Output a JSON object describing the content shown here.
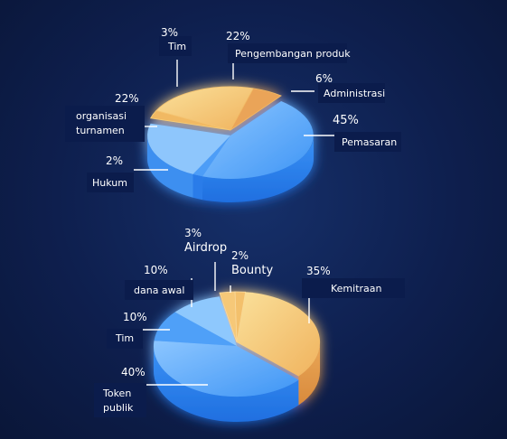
{
  "chart_data": [
    {
      "type": "pie",
      "slices": [
        {
          "label": "Tim",
          "pct_label": "3%",
          "value": 3
        },
        {
          "label": "Pengembangan produk",
          "pct_label": "22%",
          "value": 22
        },
        {
          "label": "Administrasi",
          "pct_label": "6%",
          "value": 6
        },
        {
          "label": "Pemasaran",
          "pct_label": "45%",
          "value": 45
        },
        {
          "label": "Hukum",
          "pct_label": "2%",
          "value": 2
        },
        {
          "label": "organisasi turnamen",
          "pct_label": "22%",
          "value": 22
        }
      ]
    },
    {
      "type": "pie",
      "slices": [
        {
          "label": "Airdrop",
          "pct_label": "3%",
          "value": 3
        },
        {
          "label": "Bounty",
          "pct_label": "2%",
          "value": 2
        },
        {
          "label": "Kemitraan",
          "pct_label": "35%",
          "value": 35
        },
        {
          "label": "Token publik",
          "pct_label": "40%",
          "value": 40
        },
        {
          "label": "Tim",
          "pct_label": "10%",
          "value": 10
        },
        {
          "label": "dana awal",
          "pct_label": "10%",
          "value": 10
        }
      ]
    }
  ],
  "colors": {
    "background": "#0e1f4e",
    "blue_top": "#6cb4fb",
    "blue_side": "#2f86f0",
    "orange_top": "#f7cf78",
    "orange_side": "#e49a4e",
    "label_box": "#0b1c4c"
  }
}
